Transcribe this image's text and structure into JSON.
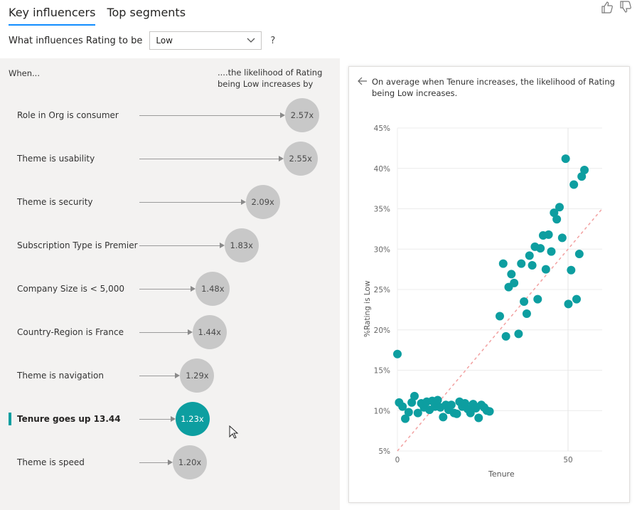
{
  "tabs": [
    {
      "label": "Key influencers",
      "active": true
    },
    {
      "label": "Top segments",
      "active": false
    }
  ],
  "question": {
    "prefix": "What influences Rating to be",
    "selected": "Low",
    "help": "?"
  },
  "left": {
    "when_label": "When...",
    "likelihood_label": "....the likelihood of Rating being Low increases by",
    "influencers": [
      {
        "label": "Role in Org is consumer",
        "value": "2.57x",
        "factor": 2.57,
        "selected": false
      },
      {
        "label": "Theme is usability",
        "value": "2.55x",
        "factor": 2.55,
        "selected": false
      },
      {
        "label": "Theme is security",
        "value": "2.09x",
        "factor": 2.09,
        "selected": false
      },
      {
        "label": "Subscription Type is Premier",
        "value": "1.83x",
        "factor": 1.83,
        "selected": false
      },
      {
        "label": "Company Size is < 5,000",
        "value": "1.48x",
        "factor": 1.48,
        "selected": false
      },
      {
        "label": "Country-Region is France",
        "value": "1.44x",
        "factor": 1.44,
        "selected": false
      },
      {
        "label": "Theme is navigation",
        "value": "1.29x",
        "factor": 1.29,
        "selected": false
      },
      {
        "label": "Tenure goes up 13.44",
        "value": "1.23x",
        "factor": 1.23,
        "selected": true
      },
      {
        "label": "Theme is speed",
        "value": "1.20x",
        "factor": 1.2,
        "selected": false
      }
    ]
  },
  "right": {
    "back_icon": "arrow-left-icon",
    "description": "On average when Tenure increases, the likelihood of Rating being Low increases."
  },
  "colors": {
    "accent": "#0d9ea0",
    "bubble": "#c8c8c8",
    "trend": "#f2a0a0",
    "tab_underline": "#118dff"
  },
  "chart_data": {
    "type": "scatter",
    "xlabel": "Tenure",
    "ylabel": "%Rating is Low",
    "xlim": [
      0,
      60
    ],
    "ylim": [
      5,
      45
    ],
    "x_ticks": [
      {
        "value": 0,
        "label": "0"
      },
      {
        "value": 50,
        "label": "50"
      }
    ],
    "y_ticks": [
      {
        "value": 5,
        "label": "5%"
      },
      {
        "value": 10,
        "label": "10%"
      },
      {
        "value": 15,
        "label": "15%"
      },
      {
        "value": 20,
        "label": "20%"
      },
      {
        "value": 25,
        "label": "25%"
      },
      {
        "value": 30,
        "label": "30%"
      },
      {
        "value": 35,
        "label": "35%"
      },
      {
        "value": 40,
        "label": "40%"
      },
      {
        "value": 45,
        "label": "45%"
      }
    ],
    "reference_line_x": 50,
    "trend_line": [
      [
        0,
        5
      ],
      [
        60,
        35
      ]
    ],
    "points": [
      [
        0,
        17
      ],
      [
        0.5,
        11
      ],
      [
        1.5,
        10.5
      ],
      [
        2.3,
        9
      ],
      [
        3.3,
        9.8
      ],
      [
        4.2,
        11
      ],
      [
        5,
        11.8
      ],
      [
        6,
        9.7
      ],
      [
        7,
        10.9
      ],
      [
        7.8,
        10.4
      ],
      [
        8.6,
        11.1
      ],
      [
        9.4,
        10.1
      ],
      [
        10.2,
        11.2
      ],
      [
        11,
        10.5
      ],
      [
        11.8,
        11.3
      ],
      [
        12.6,
        10.4
      ],
      [
        13.4,
        9.2
      ],
      [
        14.2,
        10.7
      ],
      [
        15,
        10.1
      ],
      [
        15.8,
        10.7
      ],
      [
        16.6,
        9.7
      ],
      [
        17.4,
        9.6
      ],
      [
        18.2,
        11.1
      ],
      [
        19,
        10.5
      ],
      [
        19.8,
        10.9
      ],
      [
        20.6,
        10.2
      ],
      [
        21.4,
        9.7
      ],
      [
        22.2,
        10.8
      ],
      [
        23,
        10.3
      ],
      [
        23.8,
        9.1
      ],
      [
        24.6,
        10.7
      ],
      [
        25.4,
        10.4
      ],
      [
        26.2,
        10
      ],
      [
        27,
        9.9
      ],
      [
        30,
        21.7
      ],
      [
        31,
        28.2
      ],
      [
        31.8,
        19.2
      ],
      [
        32.6,
        25.3
      ],
      [
        33.4,
        26.9
      ],
      [
        34.2,
        25.8
      ],
      [
        35.5,
        19.5
      ],
      [
        36.3,
        28.2
      ],
      [
        37.1,
        23.5
      ],
      [
        37.9,
        22
      ],
      [
        38.7,
        29.2
      ],
      [
        39.5,
        28
      ],
      [
        40.3,
        30.3
      ],
      [
        41.1,
        23.8
      ],
      [
        41.9,
        30.1
      ],
      [
        42.7,
        31.7
      ],
      [
        43.5,
        27.5
      ],
      [
        44.3,
        31.8
      ],
      [
        45.1,
        29.7
      ],
      [
        45.9,
        34.5
      ],
      [
        46.7,
        33.7
      ],
      [
        47.5,
        35.2
      ],
      [
        48.3,
        31.4
      ],
      [
        49.3,
        41.2
      ],
      [
        50.1,
        23.2
      ],
      [
        50.9,
        27.4
      ],
      [
        51.7,
        38
      ],
      [
        52.5,
        23.8
      ],
      [
        53.3,
        29.4
      ],
      [
        54,
        39
      ],
      [
        54.8,
        39.8
      ]
    ]
  }
}
